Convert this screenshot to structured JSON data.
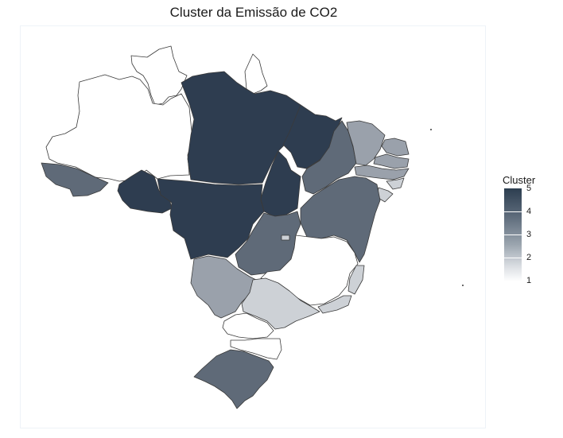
{
  "title": "Cluster da Emissão de CO2",
  "legend": {
    "title": "Cluster",
    "ticks": [
      "5",
      "4",
      "3",
      "2",
      "1"
    ]
  },
  "colors": {
    "cluster_1": "#ffffff",
    "cluster_2": "#cdd1d6",
    "cluster_3": "#9aa1ab",
    "cluster_4": "#5f6a78",
    "cluster_5": "#2e3d50",
    "border": "#3a3a3a"
  }
}
